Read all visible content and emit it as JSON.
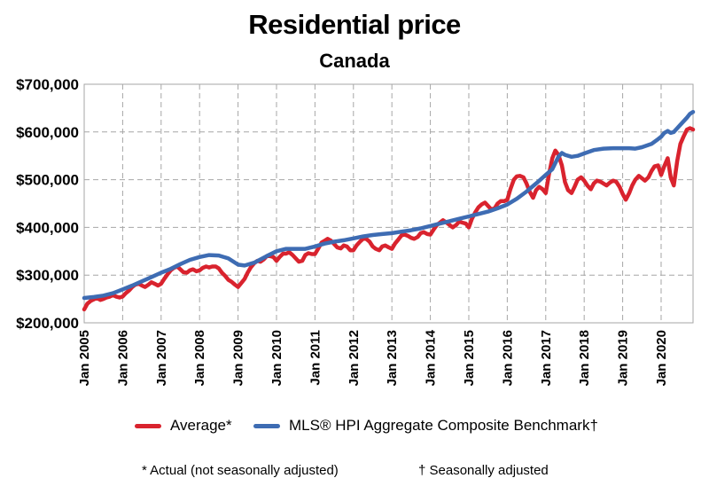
{
  "header": {
    "title": "Residential price",
    "subtitle": "Canada"
  },
  "legend": {
    "average_label": "Average*",
    "hpi_label": "MLS® HPI Aggregate Composite Benchmark†"
  },
  "footnotes": {
    "actual": "* Actual (not seasonally adjusted)",
    "seasonal": "† Seasonally adjusted"
  },
  "colors": {
    "average": "#d9232e",
    "hpi": "#3e6cb3",
    "grid": "#a6a6a6"
  },
  "chart_data": {
    "type": "line",
    "title": "Residential price",
    "subtitle": "Canada",
    "xlabel": "",
    "ylabel": "",
    "ylim": [
      200000,
      700000
    ],
    "xlim": [
      2005.0,
      2020.83
    ],
    "grid": true,
    "legend_position": "bottom",
    "y_ticks": [
      200000,
      300000,
      400000,
      500000,
      600000,
      700000
    ],
    "y_tick_labels": [
      "$200,000",
      "$300,000",
      "$400,000",
      "$500,000",
      "$600,000",
      "$700,000"
    ],
    "x_ticks": [
      2005,
      2006,
      2007,
      2008,
      2009,
      2010,
      2011,
      2012,
      2013,
      2014,
      2015,
      2016,
      2017,
      2018,
      2019,
      2020
    ],
    "x_tick_labels": [
      "Jan 2005",
      "Jan 2006",
      "Jan 2007",
      "Jan 2008",
      "Jan 2009",
      "Jan 2010",
      "Jan 2011",
      "Jan 2012",
      "Jan 2013",
      "Jan 2014",
      "Jan 2015",
      "Jan 2016",
      "Jan 2017",
      "Jan 2018",
      "Jan 2019",
      "Jan 2020"
    ],
    "series": [
      {
        "name": "Average*",
        "color": "#d9232e",
        "points": [
          [
            2005.0,
            228000
          ],
          [
            2005.08,
            240000
          ],
          [
            2005.17,
            246000
          ],
          [
            2005.25,
            249000
          ],
          [
            2005.33,
            252000
          ],
          [
            2005.42,
            248000
          ],
          [
            2005.5,
            250000
          ],
          [
            2005.58,
            253000
          ],
          [
            2005.67,
            255000
          ],
          [
            2005.75,
            258000
          ],
          [
            2005.83,
            255000
          ],
          [
            2005.92,
            253000
          ],
          [
            2006.0,
            255000
          ],
          [
            2006.08,
            262000
          ],
          [
            2006.17,
            268000
          ],
          [
            2006.25,
            275000
          ],
          [
            2006.33,
            280000
          ],
          [
            2006.42,
            282000
          ],
          [
            2006.5,
            278000
          ],
          [
            2006.58,
            275000
          ],
          [
            2006.67,
            280000
          ],
          [
            2006.75,
            285000
          ],
          [
            2006.83,
            282000
          ],
          [
            2006.92,
            278000
          ],
          [
            2007.0,
            282000
          ],
          [
            2007.08,
            292000
          ],
          [
            2007.17,
            302000
          ],
          [
            2007.25,
            310000
          ],
          [
            2007.33,
            315000
          ],
          [
            2007.42,
            318000
          ],
          [
            2007.5,
            312000
          ],
          [
            2007.58,
            306000
          ],
          [
            2007.67,
            305000
          ],
          [
            2007.75,
            310000
          ],
          [
            2007.83,
            312000
          ],
          [
            2007.92,
            308000
          ],
          [
            2008.0,
            310000
          ],
          [
            2008.08,
            315000
          ],
          [
            2008.17,
            318000
          ],
          [
            2008.25,
            316000
          ],
          [
            2008.33,
            318000
          ],
          [
            2008.42,
            318000
          ],
          [
            2008.5,
            314000
          ],
          [
            2008.58,
            305000
          ],
          [
            2008.67,
            298000
          ],
          [
            2008.75,
            290000
          ],
          [
            2008.83,
            286000
          ],
          [
            2008.92,
            280000
          ],
          [
            2009.0,
            275000
          ],
          [
            2009.08,
            283000
          ],
          [
            2009.17,
            292000
          ],
          [
            2009.25,
            305000
          ],
          [
            2009.33,
            316000
          ],
          [
            2009.42,
            325000
          ],
          [
            2009.5,
            330000
          ],
          [
            2009.58,
            328000
          ],
          [
            2009.67,
            333000
          ],
          [
            2009.75,
            340000
          ],
          [
            2009.83,
            340000
          ],
          [
            2009.92,
            338000
          ],
          [
            2010.0,
            330000
          ],
          [
            2010.08,
            338000
          ],
          [
            2010.17,
            345000
          ],
          [
            2010.25,
            345000
          ],
          [
            2010.33,
            348000
          ],
          [
            2010.42,
            342000
          ],
          [
            2010.5,
            335000
          ],
          [
            2010.58,
            328000
          ],
          [
            2010.67,
            330000
          ],
          [
            2010.75,
            342000
          ],
          [
            2010.83,
            346000
          ],
          [
            2010.92,
            344000
          ],
          [
            2011.0,
            344000
          ],
          [
            2011.08,
            355000
          ],
          [
            2011.17,
            368000
          ],
          [
            2011.25,
            372000
          ],
          [
            2011.33,
            376000
          ],
          [
            2011.42,
            372000
          ],
          [
            2011.5,
            365000
          ],
          [
            2011.58,
            358000
          ],
          [
            2011.67,
            356000
          ],
          [
            2011.75,
            362000
          ],
          [
            2011.83,
            360000
          ],
          [
            2011.92,
            352000
          ],
          [
            2012.0,
            352000
          ],
          [
            2012.08,
            362000
          ],
          [
            2012.17,
            370000
          ],
          [
            2012.25,
            376000
          ],
          [
            2012.33,
            376000
          ],
          [
            2012.42,
            370000
          ],
          [
            2012.5,
            360000
          ],
          [
            2012.58,
            355000
          ],
          [
            2012.67,
            352000
          ],
          [
            2012.75,
            360000
          ],
          [
            2012.83,
            362000
          ],
          [
            2012.92,
            358000
          ],
          [
            2013.0,
            355000
          ],
          [
            2013.08,
            366000
          ],
          [
            2013.17,
            375000
          ],
          [
            2013.25,
            383000
          ],
          [
            2013.33,
            385000
          ],
          [
            2013.42,
            382000
          ],
          [
            2013.5,
            378000
          ],
          [
            2013.58,
            376000
          ],
          [
            2013.67,
            380000
          ],
          [
            2013.75,
            388000
          ],
          [
            2013.83,
            390000
          ],
          [
            2013.92,
            386000
          ],
          [
            2014.0,
            385000
          ],
          [
            2014.08,
            395000
          ],
          [
            2014.17,
            405000
          ],
          [
            2014.25,
            410000
          ],
          [
            2014.33,
            415000
          ],
          [
            2014.42,
            410000
          ],
          [
            2014.5,
            405000
          ],
          [
            2014.58,
            400000
          ],
          [
            2014.67,
            405000
          ],
          [
            2014.75,
            412000
          ],
          [
            2014.83,
            410000
          ],
          [
            2014.92,
            408000
          ],
          [
            2015.0,
            400000
          ],
          [
            2015.08,
            418000
          ],
          [
            2015.17,
            432000
          ],
          [
            2015.25,
            442000
          ],
          [
            2015.33,
            448000
          ],
          [
            2015.42,
            452000
          ],
          [
            2015.5,
            445000
          ],
          [
            2015.58,
            438000
          ],
          [
            2015.67,
            440000
          ],
          [
            2015.75,
            450000
          ],
          [
            2015.83,
            455000
          ],
          [
            2015.92,
            455000
          ],
          [
            2016.0,
            458000
          ],
          [
            2016.08,
            480000
          ],
          [
            2016.17,
            500000
          ],
          [
            2016.25,
            507000
          ],
          [
            2016.33,
            508000
          ],
          [
            2016.42,
            505000
          ],
          [
            2016.5,
            492000
          ],
          [
            2016.58,
            475000
          ],
          [
            2016.67,
            462000
          ],
          [
            2016.75,
            478000
          ],
          [
            2016.83,
            485000
          ],
          [
            2016.92,
            480000
          ],
          [
            2017.0,
            472000
          ],
          [
            2017.08,
            510000
          ],
          [
            2017.17,
            545000
          ],
          [
            2017.25,
            561000
          ],
          [
            2017.33,
            552000
          ],
          [
            2017.42,
            530000
          ],
          [
            2017.5,
            495000
          ],
          [
            2017.58,
            478000
          ],
          [
            2017.67,
            472000
          ],
          [
            2017.75,
            485000
          ],
          [
            2017.83,
            500000
          ],
          [
            2017.92,
            505000
          ],
          [
            2018.0,
            498000
          ],
          [
            2018.08,
            488000
          ],
          [
            2018.17,
            480000
          ],
          [
            2018.25,
            492000
          ],
          [
            2018.33,
            498000
          ],
          [
            2018.42,
            496000
          ],
          [
            2018.5,
            492000
          ],
          [
            2018.58,
            488000
          ],
          [
            2018.67,
            494000
          ],
          [
            2018.75,
            498000
          ],
          [
            2018.83,
            496000
          ],
          [
            2018.92,
            485000
          ],
          [
            2019.0,
            470000
          ],
          [
            2019.08,
            458000
          ],
          [
            2019.17,
            472000
          ],
          [
            2019.25,
            488000
          ],
          [
            2019.33,
            500000
          ],
          [
            2019.42,
            508000
          ],
          [
            2019.5,
            503000
          ],
          [
            2019.58,
            498000
          ],
          [
            2019.67,
            505000
          ],
          [
            2019.75,
            518000
          ],
          [
            2019.83,
            528000
          ],
          [
            2019.92,
            530000
          ],
          [
            2020.0,
            510000
          ],
          [
            2020.08,
            528000
          ],
          [
            2020.17,
            545000
          ],
          [
            2020.25,
            505000
          ],
          [
            2020.33,
            488000
          ],
          [
            2020.42,
            540000
          ],
          [
            2020.5,
            575000
          ],
          [
            2020.58,
            590000
          ],
          [
            2020.67,
            605000
          ],
          [
            2020.75,
            608000
          ],
          [
            2020.83,
            605000
          ]
        ]
      },
      {
        "name": "MLS® HPI Aggregate Composite Benchmark†",
        "color": "#3e6cb3",
        "points": [
          [
            2005.0,
            252000
          ],
          [
            2005.25,
            254000
          ],
          [
            2005.5,
            257000
          ],
          [
            2005.75,
            262000
          ],
          [
            2006.0,
            270000
          ],
          [
            2006.25,
            278000
          ],
          [
            2006.5,
            287000
          ],
          [
            2006.75,
            296000
          ],
          [
            2007.0,
            305000
          ],
          [
            2007.25,
            313000
          ],
          [
            2007.5,
            323000
          ],
          [
            2007.75,
            332000
          ],
          [
            2008.0,
            338000
          ],
          [
            2008.25,
            342000
          ],
          [
            2008.5,
            341000
          ],
          [
            2008.75,
            335000
          ],
          [
            2009.0,
            322000
          ],
          [
            2009.17,
            320000
          ],
          [
            2009.42,
            326000
          ],
          [
            2009.75,
            340000
          ],
          [
            2010.0,
            350000
          ],
          [
            2010.25,
            355000
          ],
          [
            2010.5,
            355000
          ],
          [
            2010.75,
            355000
          ],
          [
            2011.0,
            360000
          ],
          [
            2011.25,
            366000
          ],
          [
            2011.5,
            370000
          ],
          [
            2011.75,
            373000
          ],
          [
            2012.0,
            377000
          ],
          [
            2012.25,
            381000
          ],
          [
            2012.5,
            384000
          ],
          [
            2012.75,
            386000
          ],
          [
            2013.0,
            388000
          ],
          [
            2013.25,
            391000
          ],
          [
            2013.5,
            394000
          ],
          [
            2013.75,
            398000
          ],
          [
            2014.0,
            403000
          ],
          [
            2014.25,
            408000
          ],
          [
            2014.5,
            413000
          ],
          [
            2014.75,
            418000
          ],
          [
            2015.0,
            423000
          ],
          [
            2015.25,
            428000
          ],
          [
            2015.5,
            433000
          ],
          [
            2015.75,
            440000
          ],
          [
            2016.0,
            448000
          ],
          [
            2016.25,
            460000
          ],
          [
            2016.5,
            475000
          ],
          [
            2016.75,
            492000
          ],
          [
            2017.0,
            510000
          ],
          [
            2017.17,
            522000
          ],
          [
            2017.33,
            548000
          ],
          [
            2017.42,
            556000
          ],
          [
            2017.5,
            552000
          ],
          [
            2017.67,
            548000
          ],
          [
            2017.83,
            550000
          ],
          [
            2018.0,
            555000
          ],
          [
            2018.25,
            562000
          ],
          [
            2018.5,
            565000
          ],
          [
            2018.75,
            566000
          ],
          [
            2019.0,
            566000
          ],
          [
            2019.17,
            566000
          ],
          [
            2019.33,
            565000
          ],
          [
            2019.5,
            568000
          ],
          [
            2019.75,
            575000
          ],
          [
            2019.92,
            585000
          ],
          [
            2020.0,
            590000
          ],
          [
            2020.08,
            598000
          ],
          [
            2020.17,
            602000
          ],
          [
            2020.25,
            598000
          ],
          [
            2020.33,
            600000
          ],
          [
            2020.5,
            615000
          ],
          [
            2020.67,
            630000
          ],
          [
            2020.75,
            638000
          ],
          [
            2020.83,
            642000
          ]
        ]
      }
    ]
  }
}
